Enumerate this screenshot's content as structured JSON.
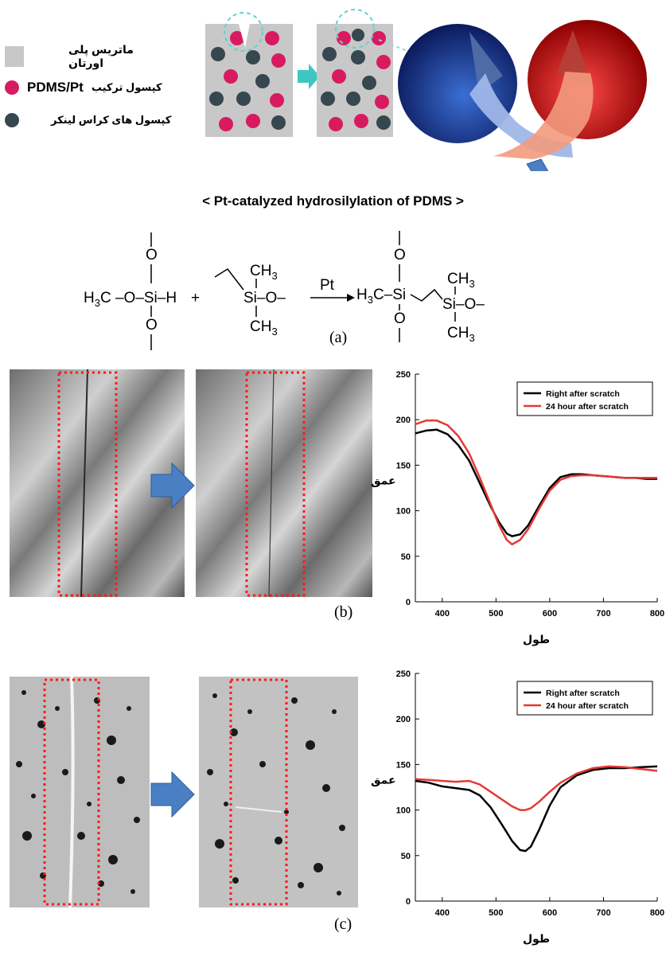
{
  "legend": {
    "matrix": "ماتریس پلی اورتان",
    "pdms_pt": "PDMS/Pt",
    "pdms_caption": "کپسول ترکیب",
    "crosslinker": "کپسول های کراس لینکر",
    "colors": {
      "matrix": "#c8c8c8",
      "pdms": "#d81b60",
      "crosslinker": "#37474f"
    }
  },
  "reaction": {
    "title": "< Pt-catalyzed hydrosilylation of PDMS >",
    "reactant1_left": "H3C–O–Si–H",
    "reactant2": "Si–O–",
    "plus": "+",
    "catalyst": "Pt",
    "product": "H3C–Si–Si–O–",
    "o": "O",
    "ch3": "CH3",
    "label_a": "(a)"
  },
  "label_b": "(b)",
  "label_c": "(c)",
  "chart_data": [
    {
      "type": "line",
      "xlabel": "طول",
      "ylabel": "عمق",
      "xlim": [
        350,
        800
      ],
      "ylim": [
        0,
        250
      ],
      "xticks": [
        "400",
        "500",
        "600",
        "700",
        "800"
      ],
      "yticks": [
        "0",
        "50",
        "100",
        "150",
        "200",
        "250"
      ],
      "legend_position": "top-right",
      "series": [
        {
          "name": "Right after scratch",
          "color": "#000000",
          "x": [
            350,
            370,
            390,
            410,
            430,
            450,
            470,
            490,
            505,
            520,
            530,
            545,
            560,
            580,
            600,
            620,
            640,
            660,
            680,
            700,
            720,
            740,
            760,
            780,
            800
          ],
          "y": [
            185,
            188,
            189,
            184,
            172,
            155,
            130,
            105,
            88,
            75,
            72,
            74,
            84,
            105,
            125,
            137,
            140,
            140,
            139,
            138,
            137,
            136,
            136,
            135,
            135
          ]
        },
        {
          "name": "24 hour after scratch",
          "color": "#e53935",
          "x": [
            350,
            370,
            390,
            410,
            430,
            450,
            470,
            490,
            505,
            520,
            530,
            545,
            560,
            580,
            600,
            620,
            640,
            660,
            680,
            700,
            720,
            740,
            760,
            780,
            800
          ],
          "y": [
            195,
            199,
            199,
            194,
            182,
            163,
            136,
            107,
            85,
            68,
            63,
            68,
            80,
            102,
            122,
            134,
            138,
            139,
            139,
            138,
            137,
            136,
            136,
            136,
            136
          ]
        }
      ]
    },
    {
      "type": "line",
      "xlabel": "طول",
      "ylabel": "عمق",
      "xlim": [
        350,
        800
      ],
      "ylim": [
        0,
        250
      ],
      "xticks": [
        "400",
        "500",
        "600",
        "700",
        "800"
      ],
      "yticks": [
        "0",
        "50",
        "100",
        "150",
        "200",
        "250"
      ],
      "legend_position": "top-right",
      "series": [
        {
          "name": "Right after scratch",
          "color": "#000000",
          "x": [
            350,
            375,
            400,
            425,
            450,
            470,
            490,
            510,
            530,
            545,
            555,
            565,
            580,
            600,
            620,
            650,
            680,
            710,
            740,
            770,
            800
          ],
          "y": [
            132,
            130,
            126,
            124,
            122,
            116,
            103,
            85,
            66,
            56,
            55,
            60,
            78,
            105,
            125,
            138,
            144,
            146,
            146,
            147,
            148
          ]
        },
        {
          "name": "24 hour after scratch",
          "color": "#e53935",
          "x": [
            350,
            375,
            400,
            425,
            450,
            470,
            490,
            510,
            530,
            545,
            555,
            565,
            580,
            600,
            620,
            650,
            680,
            710,
            740,
            770,
            800
          ],
          "y": [
            134,
            133,
            132,
            131,
            132,
            128,
            120,
            112,
            104,
            100,
            100,
            102,
            109,
            120,
            130,
            140,
            146,
            148,
            147,
            145,
            143
          ]
        }
      ]
    }
  ]
}
